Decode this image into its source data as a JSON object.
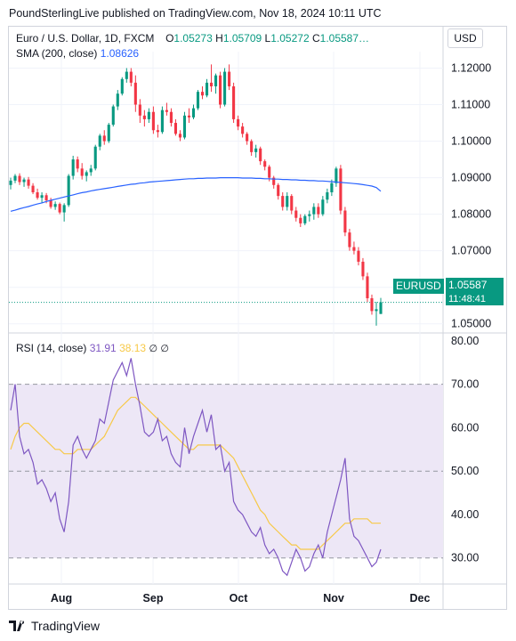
{
  "header": {
    "text": "PoundSterlingLive published on TradingView.com, Nov 18, 2024 10:11 UTC"
  },
  "price_legend": {
    "symbol": "Euro / U.S. Dollar, 1D, FXCM",
    "o_label": "O",
    "o_value": "1.05273",
    "h_label": "H",
    "h_value": "1.05709",
    "l_label": "L",
    "l_value": "1.05272",
    "c_label": "C",
    "c_value": "1.05587…",
    "sma_label": "SMA (200, close)",
    "sma_value": "1.08626"
  },
  "currency_button": "USD",
  "symbol_badge": "EURUSD",
  "price_badge": "1.05587",
  "countdown_badge": "11:48:41",
  "rsi_legend": {
    "label": "RSI (14, close)",
    "rsi_value": "31.91",
    "ma_value": "38.13",
    "na1": "∅",
    "na2": "∅"
  },
  "footer": {
    "brand": "TradingView"
  },
  "colors": {
    "up": "#089981",
    "down": "#f23645",
    "sma": "#2962ff",
    "rsi": "#7e57c2",
    "rsi_ma": "#f7c948",
    "band": "#ede7f6"
  },
  "chart_data": [
    {
      "type": "candlestick",
      "title": "Euro / U.S. Dollar, 1D, FXCM",
      "y_ticks": [
        "1.12000",
        "1.11000",
        "1.10000",
        "1.09000",
        "1.08000",
        "1.07000",
        "1.06000",
        "1.05000"
      ],
      "ylim": [
        1.0475,
        1.1245
      ],
      "x_ticks": [
        "Aug",
        "Sep",
        "Oct",
        "Nov",
        "Dec"
      ],
      "last_price": 1.05587,
      "candles": [
        [
          1.088,
          1.09,
          1.0868,
          1.0892
        ],
        [
          1.0892,
          1.091,
          1.0885,
          1.0905
        ],
        [
          1.0905,
          1.0912,
          1.088,
          1.0888
        ],
        [
          1.0888,
          1.09,
          1.0875,
          1.0895
        ],
        [
          1.0895,
          1.0902,
          1.087,
          1.0878
        ],
        [
          1.0878,
          1.0885,
          1.0855,
          1.086
        ],
        [
          1.086,
          1.087,
          1.084,
          1.0845
        ],
        [
          1.0845,
          1.086,
          1.083,
          1.0852
        ],
        [
          1.0852,
          1.0858,
          1.083,
          1.0838
        ],
        [
          1.0838,
          1.0845,
          1.0815,
          1.082
        ],
        [
          1.082,
          1.0835,
          1.0812,
          1.0828
        ],
        [
          1.0828,
          1.0832,
          1.08,
          1.0805
        ],
        [
          1.0805,
          1.083,
          1.078,
          1.0825
        ],
        [
          1.0825,
          1.091,
          1.082,
          1.0905
        ],
        [
          1.0905,
          1.096,
          1.0895,
          1.095
        ],
        [
          1.095,
          1.0958,
          1.0915,
          1.0925
        ],
        [
          1.0925,
          1.094,
          1.0895,
          1.0905
        ],
        [
          1.0905,
          1.092,
          1.089,
          1.0915
        ],
        [
          1.0915,
          1.0935,
          1.0905,
          1.0925
        ],
        [
          1.0925,
          1.099,
          1.092,
          1.0985
        ],
        [
          1.0985,
          1.102,
          1.0975,
          1.1015
        ],
        [
          1.1015,
          1.103,
          1.099,
          1.1
        ],
        [
          1.1,
          1.105,
          1.0995,
          1.1045
        ],
        [
          1.1045,
          1.11,
          1.104,
          1.1095
        ],
        [
          1.1095,
          1.114,
          1.1085,
          1.113
        ],
        [
          1.113,
          1.1175,
          1.1125,
          1.117
        ],
        [
          1.117,
          1.12,
          1.116,
          1.119
        ],
        [
          1.119,
          1.12,
          1.115,
          1.116
        ],
        [
          1.116,
          1.118,
          1.108,
          1.11
        ],
        [
          1.11,
          1.1115,
          1.105,
          1.107
        ],
        [
          1.107,
          1.1085,
          1.104,
          1.106
        ],
        [
          1.106,
          1.109,
          1.105,
          1.108
        ],
        [
          1.108,
          1.1095,
          1.102,
          1.103
        ],
        [
          1.103,
          1.1045,
          1.101,
          1.1025
        ],
        [
          1.1025,
          1.1095,
          1.102,
          1.1085
        ],
        [
          1.1085,
          1.1105,
          1.107,
          1.108
        ],
        [
          1.108,
          1.109,
          1.104,
          1.105
        ],
        [
          1.105,
          1.106,
          1.1015,
          1.102
        ],
        [
          1.102,
          1.103,
          1.1,
          1.101
        ],
        [
          1.101,
          1.108,
          1.1005,
          1.107
        ],
        [
          1.107,
          1.109,
          1.105,
          1.1065
        ],
        [
          1.1065,
          1.11,
          1.106,
          1.109
        ],
        [
          1.109,
          1.114,
          1.1085,
          1.1135
        ],
        [
          1.1135,
          1.115,
          1.1115,
          1.1125
        ],
        [
          1.1125,
          1.117,
          1.112,
          1.116
        ],
        [
          1.116,
          1.121,
          1.1135,
          1.115
        ],
        [
          1.115,
          1.1185,
          1.113,
          1.118
        ],
        [
          1.118,
          1.119,
          1.109,
          1.11
        ],
        [
          1.11,
          1.12,
          1.1095,
          1.119
        ],
        [
          1.119,
          1.121,
          1.114,
          1.115
        ],
        [
          1.115,
          1.116,
          1.105,
          1.106
        ],
        [
          1.106,
          1.107,
          1.103,
          1.104
        ],
        [
          1.104,
          1.105,
          1.101,
          1.102
        ],
        [
          1.102,
          1.1025,
          1.099,
          1.1
        ],
        [
          1.1,
          1.1005,
          1.096,
          1.097
        ],
        [
          1.097,
          1.099,
          1.0955,
          1.098
        ],
        [
          1.098,
          1.0985,
          1.0935,
          1.0945
        ],
        [
          1.0945,
          1.095,
          1.092,
          1.093
        ],
        [
          1.093,
          1.0935,
          1.089,
          1.09
        ],
        [
          1.09,
          1.0905,
          1.087,
          1.088
        ],
        [
          1.088,
          1.0885,
          1.084,
          1.085
        ],
        [
          1.085,
          1.086,
          1.081,
          1.082
        ],
        [
          1.082,
          1.086,
          1.081,
          1.085
        ],
        [
          1.085,
          1.0855,
          1.08,
          1.081
        ],
        [
          1.081,
          1.082,
          1.078,
          1.079
        ],
        [
          1.079,
          1.08,
          1.0765,
          1.0775
        ],
        [
          1.0775,
          1.08,
          1.077,
          1.0795
        ],
        [
          1.0795,
          1.081,
          1.078,
          1.08
        ],
        [
          1.08,
          1.083,
          1.0785,
          1.082
        ],
        [
          1.082,
          1.083,
          1.079,
          1.08
        ],
        [
          1.08,
          1.085,
          1.0795,
          1.084
        ],
        [
          1.084,
          1.087,
          1.083,
          1.086
        ],
        [
          1.086,
          1.0895,
          1.085,
          1.0885
        ],
        [
          1.0885,
          1.093,
          1.0875,
          1.0925
        ],
        [
          1.0925,
          1.0935,
          1.08,
          1.081
        ],
        [
          1.081,
          1.082,
          1.074,
          1.075
        ],
        [
          1.075,
          1.076,
          1.07,
          1.071
        ],
        [
          1.071,
          1.0725,
          1.069,
          1.07
        ],
        [
          1.07,
          1.071,
          1.066,
          1.067
        ],
        [
          1.067,
          1.068,
          1.062,
          1.063
        ],
        [
          1.063,
          1.064,
          1.056,
          1.057
        ],
        [
          1.057,
          1.058,
          1.0525,
          1.0535
        ],
        [
          1.0535,
          1.056,
          1.0495,
          1.054
        ],
        [
          1.0527,
          1.0571,
          1.0527,
          1.0559
        ]
      ],
      "sma_200": [
        1.0808,
        1.0811,
        1.0815,
        1.0818,
        1.0821,
        1.0825,
        1.0828,
        1.0831,
        1.0835,
        1.0838,
        1.0841,
        1.0844,
        1.0847,
        1.085,
        1.0853,
        1.0856,
        1.0859,
        1.0861,
        1.0864,
        1.0866,
        1.0868,
        1.087,
        1.0872,
        1.0874,
        1.0876,
        1.0878,
        1.088,
        1.0882,
        1.0883,
        1.0885,
        1.0886,
        1.0888,
        1.0889,
        1.089,
        1.0891,
        1.0892,
        1.0893,
        1.0894,
        1.0895,
        1.0896,
        1.0897,
        1.0897,
        1.0898,
        1.0898,
        1.0899,
        1.0899,
        1.0899,
        1.09,
        1.09,
        1.09,
        1.09,
        1.09,
        1.0899,
        1.0899,
        1.0899,
        1.0898,
        1.0898,
        1.0897,
        1.0897,
        1.0896,
        1.0896,
        1.0895,
        1.0895,
        1.0894,
        1.0894,
        1.0893,
        1.0893,
        1.0892,
        1.0892,
        1.0891,
        1.0891,
        1.089,
        1.0889,
        1.0888,
        1.0887,
        1.0886,
        1.0885,
        1.0884,
        1.0883,
        1.0881,
        1.0879,
        1.0877,
        1.0873,
        1.0863
      ]
    },
    {
      "type": "line",
      "title": "RSI (14, close)",
      "y_ticks": [
        "80.00",
        "70.00",
        "60.00",
        "50.00",
        "40.00",
        "30.00"
      ],
      "ylim": [
        24,
        81
      ],
      "levels": [
        70,
        50,
        30
      ],
      "series": [
        {
          "name": "RSI",
          "values": [
            64,
            70,
            58,
            54,
            55,
            52,
            47,
            48,
            46,
            43,
            45,
            39,
            36,
            43,
            56,
            58,
            55,
            53,
            55,
            57,
            62,
            61,
            66,
            71,
            73,
            75,
            72,
            76,
            70,
            65,
            59,
            58,
            59,
            62,
            57,
            58,
            54,
            52,
            51,
            60,
            54,
            58,
            61,
            64,
            59,
            63,
            55,
            56,
            50,
            52,
            43,
            41,
            40,
            38,
            36,
            35,
            37,
            33,
            31,
            32,
            30,
            27,
            26,
            29,
            32,
            30,
            27,
            28,
            31,
            33,
            30,
            36,
            40,
            44,
            48,
            53,
            39,
            35,
            34,
            32,
            30,
            28,
            29,
            32
          ]
        },
        {
          "name": "RSI MA",
          "values": [
            55,
            58,
            60,
            61,
            61,
            60,
            59,
            58,
            57,
            56,
            55,
            55,
            54,
            54,
            54,
            55,
            55,
            55,
            55,
            56,
            57,
            58,
            60,
            62,
            64,
            65,
            66,
            67,
            67,
            66,
            65,
            64,
            63,
            62,
            61,
            60,
            59,
            58,
            57,
            56,
            55,
            55,
            56,
            56,
            56,
            56,
            56,
            56,
            55,
            54,
            53,
            51,
            49,
            47,
            45,
            43,
            41,
            40,
            38,
            37,
            36,
            35,
            34,
            33,
            33,
            32,
            32,
            32,
            32,
            32,
            33,
            34,
            35,
            36,
            37,
            38,
            38,
            39,
            39,
            39,
            39,
            38,
            38,
            38
          ]
        }
      ]
    }
  ]
}
